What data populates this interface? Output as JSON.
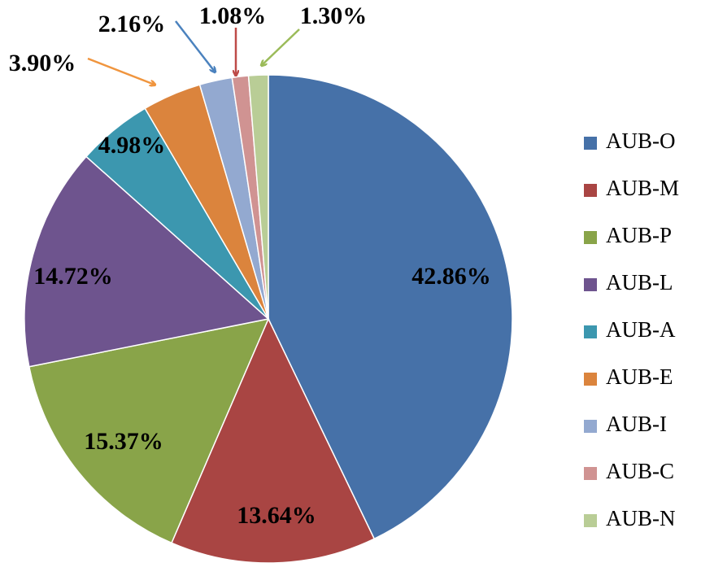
{
  "chart_data": {
    "type": "pie",
    "title": "",
    "legend_position": "right",
    "slices": [
      {
        "label": "AUB-O",
        "value": 42.86,
        "display": "42.86%",
        "color": "#4671A8"
      },
      {
        "label": "AUB-M",
        "value": 13.64,
        "display": "13.64%",
        "color": "#A94543"
      },
      {
        "label": "AUB-P",
        "value": 15.37,
        "display": "15.37%",
        "color": "#89A449"
      },
      {
        "label": "AUB-L",
        "value": 14.72,
        "display": "14.72%",
        "color": "#6E548E"
      },
      {
        "label": "AUB-A",
        "value": 4.98,
        "display": "4.98%",
        "color": "#3C97AF"
      },
      {
        "label": "AUB-E",
        "value": 3.9,
        "display": "3.90%",
        "color": "#DB843D"
      },
      {
        "label": "AUB-I",
        "value": 2.16,
        "display": "2.16%",
        "color": "#93A9D0"
      },
      {
        "label": "AUB-C",
        "value": 1.08,
        "display": "1.08%",
        "color": "#D09392"
      },
      {
        "label": "AUB-N",
        "value": 1.3,
        "display": "1.30%",
        "color": "#B9CD96"
      }
    ]
  }
}
